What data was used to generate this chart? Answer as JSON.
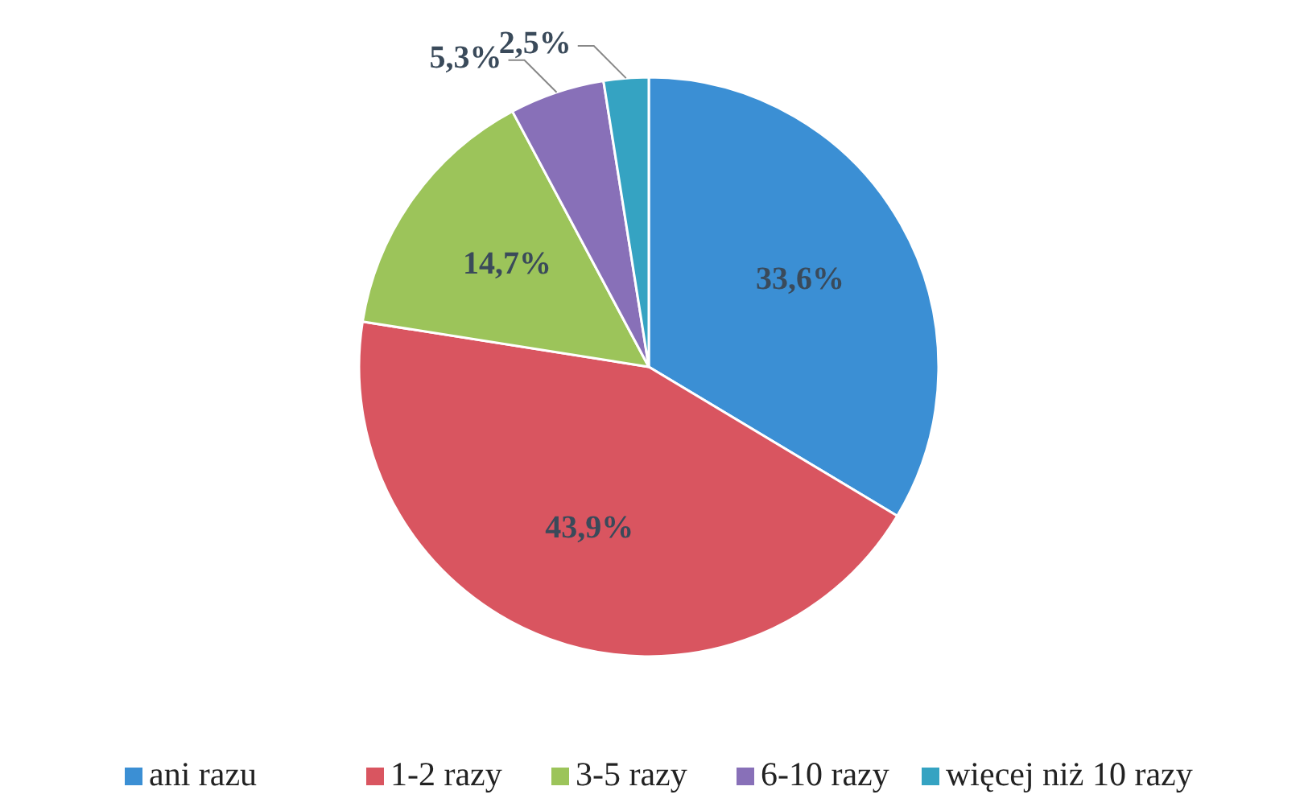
{
  "chart_data": {
    "type": "pie",
    "categories": [
      "ani razu",
      "1-2 razy",
      "3-5 razy",
      "6-10 razy",
      "więcej niż 10 razy"
    ],
    "values": [
      33.6,
      43.9,
      14.7,
      5.3,
      2.5
    ],
    "value_labels": [
      "33,6%",
      "43,9%",
      "14,7%",
      "5,3%",
      "2,5%"
    ],
    "colors": [
      "#3b8fd4",
      "#d95560",
      "#9cc45a",
      "#8870b8",
      "#35a3c2"
    ],
    "legend": "bottom"
  }
}
